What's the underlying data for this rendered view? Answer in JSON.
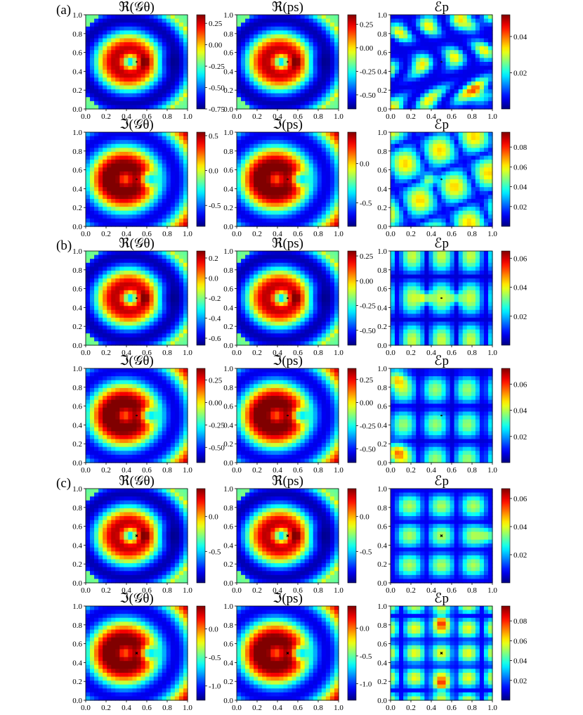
{
  "figure": {
    "row_labels": [
      "(a)",
      "(b)",
      "(c)"
    ],
    "colors": {
      "colormap": "jet",
      "obstacle_fill": "#ffffff",
      "obstacle_edge": "#000000"
    }
  },
  "chart_data": [
    {
      "type": "heatmap",
      "group": "(a)",
      "title": "ℜ(𝒢θ)",
      "xlim": [
        0,
        1
      ],
      "ylim": [
        0,
        1
      ],
      "x_ticks": [
        "0.0",
        "0.2",
        "0.4",
        "0.6",
        "0.8",
        "1.0"
      ],
      "y_ticks": [
        "0.0",
        "0.2",
        "0.4",
        "0.6",
        "0.8",
        "1.0"
      ],
      "colorbar": {
        "range": [
          -0.75,
          0.35
        ],
        "ticks": [
          "0.25",
          "0.00",
          "-0.25",
          "-0.50",
          "-0.75"
        ],
        "tick_values": [
          0.25,
          0,
          -0.25,
          -0.5,
          -0.75
        ]
      },
      "pattern": "real",
      "obstacle": "rounded-square"
    },
    {
      "type": "heatmap",
      "group": "(a)",
      "title": "ℜ(ps)",
      "xlim": [
        0,
        1
      ],
      "ylim": [
        0,
        1
      ],
      "x_ticks": [
        "0.0",
        "0.2",
        "0.4",
        "0.6",
        "0.8",
        "1.0"
      ],
      "y_ticks": [
        "0.0",
        "0.2",
        "0.4",
        "0.6",
        "0.8",
        "1.0"
      ],
      "colorbar": {
        "range": [
          -0.65,
          0.35
        ],
        "ticks": [
          "0.25",
          "0.00",
          "-0.25",
          "-0.50"
        ],
        "tick_values": [
          0.25,
          0,
          -0.25,
          -0.5
        ]
      },
      "pattern": "real",
      "obstacle": "rounded-square"
    },
    {
      "type": "heatmap",
      "group": "(a)",
      "title": "ℰp",
      "xlim": [
        0,
        1
      ],
      "ylim": [
        0,
        1
      ],
      "x_ticks": [
        "0.0",
        "0.2",
        "0.4",
        "0.6",
        "0.8",
        "1.0"
      ],
      "y_ticks": [
        "0.0",
        "0.2",
        "0.4",
        "0.6",
        "0.8",
        "1.0"
      ],
      "colorbar": {
        "range": [
          0,
          0.052
        ],
        "ticks": [
          "0.04",
          "0.02"
        ],
        "tick_values": [
          0.04,
          0.02
        ]
      },
      "pattern": "error1",
      "obstacle": "rounded-square"
    },
    {
      "type": "heatmap",
      "group": "(a)",
      "title": "ℑ(𝒢θ)",
      "xlim": [
        0,
        1
      ],
      "ylim": [
        0,
        1
      ],
      "x_ticks": [
        "0.0",
        "0.2",
        "0.4",
        "0.6",
        "0.8",
        "1.0"
      ],
      "y_ticks": [
        "0.0",
        "0.2",
        "0.4",
        "0.6",
        "0.8",
        "1.0"
      ],
      "colorbar": {
        "range": [
          -0.8,
          0.55
        ],
        "ticks": [
          "0.5",
          "0.0",
          "-0.5"
        ],
        "tick_values": [
          0.5,
          0,
          -0.5
        ]
      },
      "pattern": "imag",
      "obstacle": "rounded-square"
    },
    {
      "type": "heatmap",
      "group": "(a)",
      "title": "ℑ(ps)",
      "xlim": [
        0,
        1
      ],
      "ylim": [
        0,
        1
      ],
      "x_ticks": [
        "0.0",
        "0.2",
        "0.4",
        "0.6",
        "0.8",
        "1.0"
      ],
      "y_ticks": [
        "0.0",
        "0.2",
        "0.4",
        "0.6",
        "0.8",
        "1.0"
      ],
      "colorbar": {
        "range": [
          -0.8,
          0.4
        ],
        "ticks": [
          "0.0",
          "-0.5"
        ],
        "tick_values": [
          0,
          -0.5
        ]
      },
      "pattern": "imag",
      "obstacle": "rounded-square"
    },
    {
      "type": "heatmap",
      "group": "(a)",
      "title": "ℰp",
      "xlim": [
        0,
        1
      ],
      "ylim": [
        0,
        1
      ],
      "x_ticks": [
        "0.0",
        "0.2",
        "0.4",
        "0.6",
        "0.8",
        "1.0"
      ],
      "y_ticks": [
        "0.0",
        "0.2",
        "0.4",
        "0.6",
        "0.8",
        "1.0"
      ],
      "colorbar": {
        "range": [
          0,
          0.095
        ],
        "ticks": [
          "0.08",
          "0.06",
          "0.04",
          "0.02"
        ],
        "tick_values": [
          0.08,
          0.06,
          0.04,
          0.02
        ]
      },
      "pattern": "error2",
      "obstacle": "rounded-square"
    },
    {
      "type": "heatmap",
      "group": "(b)",
      "title": "ℜ(𝒢θ)",
      "xlim": [
        0,
        1
      ],
      "ylim": [
        0,
        1
      ],
      "x_ticks": [
        "0.0",
        "0.2",
        "0.4",
        "0.6",
        "0.8",
        "1.0"
      ],
      "y_ticks": [
        "0.0",
        "0.2",
        "0.4",
        "0.6",
        "0.8",
        "1.0"
      ],
      "colorbar": {
        "range": [
          -0.67,
          0.27
        ],
        "ticks": [
          "0.2",
          "0.0",
          "-0.2",
          "-0.4",
          "-0.6"
        ],
        "tick_values": [
          0.2,
          0,
          -0.2,
          -0.4,
          -0.6
        ]
      },
      "pattern": "real",
      "obstacle": "peanut"
    },
    {
      "type": "heatmap",
      "group": "(b)",
      "title": "ℜ(ps)",
      "xlim": [
        0,
        1
      ],
      "ylim": [
        0,
        1
      ],
      "x_ticks": [
        "0.0",
        "0.2",
        "0.4",
        "0.6",
        "0.8",
        "1.0"
      ],
      "y_ticks": [
        "0.0",
        "0.2",
        "0.4",
        "0.6",
        "0.8",
        "1.0"
      ],
      "colorbar": {
        "range": [
          -0.65,
          0.3
        ],
        "ticks": [
          "0.25",
          "0.00",
          "-0.25",
          "-0.50"
        ],
        "tick_values": [
          0.25,
          0,
          -0.25,
          -0.5
        ]
      },
      "pattern": "real",
      "obstacle": "peanut"
    },
    {
      "type": "heatmap",
      "group": "(b)",
      "title": "ℰp",
      "xlim": [
        0,
        1
      ],
      "ylim": [
        0,
        1
      ],
      "x_ticks": [
        "0.0",
        "0.2",
        "0.4",
        "0.6",
        "0.8",
        "1.0"
      ],
      "y_ticks": [
        "0.0",
        "0.2",
        "0.4",
        "0.6",
        "0.8",
        "1.0"
      ],
      "colorbar": {
        "range": [
          0,
          0.065
        ],
        "ticks": [
          "0.06",
          "0.04",
          "0.02"
        ],
        "tick_values": [
          0.06,
          0.04,
          0.02
        ]
      },
      "pattern": "error3",
      "obstacle": "peanut"
    },
    {
      "type": "heatmap",
      "group": "(b)",
      "title": "ℑ(𝒢θ)",
      "xlim": [
        0,
        1
      ],
      "ylim": [
        0,
        1
      ],
      "x_ticks": [
        "0.0",
        "0.2",
        "0.4",
        "0.6",
        "0.8",
        "1.0"
      ],
      "y_ticks": [
        "0.0",
        "0.2",
        "0.4",
        "0.6",
        "0.8",
        "1.0"
      ],
      "colorbar": {
        "range": [
          -0.67,
          0.38
        ],
        "ticks": [
          "0.25",
          "0.00",
          "-0.25",
          "-0.50"
        ],
        "tick_values": [
          0.25,
          0,
          -0.25,
          -0.5
        ]
      },
      "pattern": "imag",
      "obstacle": "peanut"
    },
    {
      "type": "heatmap",
      "group": "(b)",
      "title": "ℑ(ps)",
      "xlim": [
        0,
        1
      ],
      "ylim": [
        0,
        1
      ],
      "x_ticks": [
        "0.0",
        "0.2",
        "0.4",
        "0.6",
        "0.8",
        "1.0"
      ],
      "y_ticks": [
        "0.0",
        "0.2",
        "0.4",
        "0.6",
        "0.8",
        "1.0"
      ],
      "colorbar": {
        "range": [
          -0.65,
          0.37
        ],
        "ticks": [
          "0.25",
          "0.00",
          "-0.25",
          "-0.50"
        ],
        "tick_values": [
          0.25,
          0,
          -0.25,
          -0.5
        ]
      },
      "pattern": "imag",
      "obstacle": "peanut"
    },
    {
      "type": "heatmap",
      "group": "(b)",
      "title": "ℰp",
      "xlim": [
        0,
        1
      ],
      "ylim": [
        0,
        1
      ],
      "x_ticks": [
        "0.0",
        "0.2",
        "0.4",
        "0.6",
        "0.8",
        "1.0"
      ],
      "y_ticks": [
        "0.0",
        "0.2",
        "0.4",
        "0.6",
        "0.8",
        "1.0"
      ],
      "colorbar": {
        "range": [
          0,
          0.072
        ],
        "ticks": [
          "0.06",
          "0.04",
          "0.02"
        ],
        "tick_values": [
          0.06,
          0.04,
          0.02
        ]
      },
      "pattern": "error4",
      "obstacle": "peanut"
    },
    {
      "type": "heatmap",
      "group": "(c)",
      "title": "ℜ(𝒢θ)",
      "xlim": [
        0,
        1
      ],
      "ylim": [
        0,
        1
      ],
      "x_ticks": [
        "0.0",
        "0.2",
        "0.4",
        "0.6",
        "0.8",
        "1.0"
      ],
      "y_ticks": [
        "0.0",
        "0.2",
        "0.4",
        "0.6",
        "0.8",
        "1.0"
      ],
      "colorbar": {
        "range": [
          -0.95,
          0.4
        ],
        "ticks": [
          "0.0",
          "-0.5"
        ],
        "tick_values": [
          0,
          -0.5
        ]
      },
      "pattern": "real",
      "obstacle": "star"
    },
    {
      "type": "heatmap",
      "group": "(c)",
      "title": "ℜ(ps)",
      "xlim": [
        0,
        1
      ],
      "ylim": [
        0,
        1
      ],
      "x_ticks": [
        "0.0",
        "0.2",
        "0.4",
        "0.6",
        "0.8",
        "1.0"
      ],
      "y_ticks": [
        "0.0",
        "0.2",
        "0.4",
        "0.6",
        "0.8",
        "1.0"
      ],
      "colorbar": {
        "range": [
          -0.95,
          0.4
        ],
        "ticks": [
          "0.0",
          "-0.5"
        ],
        "tick_values": [
          0,
          -0.5
        ]
      },
      "pattern": "real",
      "obstacle": "star"
    },
    {
      "type": "heatmap",
      "group": "(c)",
      "title": "ℰp",
      "xlim": [
        0,
        1
      ],
      "ylim": [
        0,
        1
      ],
      "x_ticks": [
        "0.0",
        "0.2",
        "0.4",
        "0.6",
        "0.8",
        "1.0"
      ],
      "y_ticks": [
        "0.0",
        "0.2",
        "0.4",
        "0.6",
        "0.8",
        "1.0"
      ],
      "colorbar": {
        "range": [
          0,
          0.067
        ],
        "ticks": [
          "0.06",
          "0.04",
          "0.02"
        ],
        "tick_values": [
          0.06,
          0.04,
          0.02
        ]
      },
      "pattern": "error5",
      "obstacle": "star"
    },
    {
      "type": "heatmap",
      "group": "(c)",
      "title": "ℑ(𝒢θ)",
      "xlim": [
        0,
        1
      ],
      "ylim": [
        0,
        1
      ],
      "x_ticks": [
        "0.0",
        "0.2",
        "0.4",
        "0.6",
        "0.8",
        "1.0"
      ],
      "y_ticks": [
        "0.0",
        "0.2",
        "0.4",
        "0.6",
        "0.8",
        "1.0"
      ],
      "colorbar": {
        "range": [
          -1.25,
          0.4
        ],
        "ticks": [
          "0.0",
          "-0.5",
          "-1.0"
        ],
        "tick_values": [
          0,
          -0.5,
          -1.0
        ]
      },
      "pattern": "imag",
      "obstacle": "star"
    },
    {
      "type": "heatmap",
      "group": "(c)",
      "title": "ℑ(ps)",
      "xlim": [
        0,
        1
      ],
      "ylim": [
        0,
        1
      ],
      "x_ticks": [
        "0.0",
        "0.2",
        "0.4",
        "0.6",
        "0.8",
        "1.0"
      ],
      "y_ticks": [
        "0.0",
        "0.2",
        "0.4",
        "0.6",
        "0.8",
        "1.0"
      ],
      "colorbar": {
        "range": [
          -1.3,
          0.4
        ],
        "ticks": [
          "0.0",
          "-0.5",
          "-1.0"
        ],
        "tick_values": [
          0,
          -0.5,
          -1.0
        ]
      },
      "pattern": "imag",
      "obstacle": "star"
    },
    {
      "type": "heatmap",
      "group": "(c)",
      "title": "ℰp",
      "xlim": [
        0,
        1
      ],
      "ylim": [
        0,
        1
      ],
      "x_ticks": [
        "0.0",
        "0.2",
        "0.4",
        "0.6",
        "0.8",
        "1.0"
      ],
      "y_ticks": [
        "0.0",
        "0.2",
        "0.4",
        "0.6",
        "0.8",
        "1.0"
      ],
      "colorbar": {
        "range": [
          0,
          0.095
        ],
        "ticks": [
          "0.08",
          "0.06",
          "0.04",
          "0.02"
        ],
        "tick_values": [
          0.08,
          0.06,
          0.04,
          0.02
        ]
      },
      "pattern": "error6",
      "obstacle": "star"
    }
  ]
}
